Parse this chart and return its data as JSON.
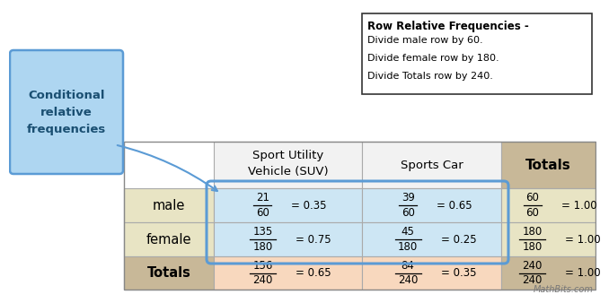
{
  "fig_w": 6.54,
  "fig_h": 3.16,
  "bg_color": "#ffffff",
  "table": {
    "cells": [
      [
        {
          "num": "21",
          "den": "60",
          "val": "= 0.35"
        },
        {
          "num": "39",
          "den": "60",
          "val": "= 0.65"
        },
        {
          "num": "60",
          "den": "60",
          "val": "= 1.00"
        }
      ],
      [
        {
          "num": "135",
          "den": "180",
          "val": "= 0.75"
        },
        {
          "num": "45",
          "den": "180",
          "val": "= 0.25"
        },
        {
          "num": "180",
          "den": "180",
          "val": "= 1.00"
        }
      ],
      [
        {
          "num": "156",
          "den": "240",
          "val": "= 0.65"
        },
        {
          "num": "84",
          "den": "240",
          "val": "= 0.35"
        },
        {
          "num": "240",
          "den": "240",
          "val": "= 1.00"
        }
      ]
    ]
  },
  "annotation": {
    "title": "Row Relative Frequencies -",
    "lines": [
      "Divide male row by 60.",
      "Divide female row by 180.",
      "Divide Totals row by 240."
    ]
  },
  "watermark": "MathBits.com",
  "c_white": "#ffffff",
  "c_light_blue": "#cde6f4",
  "c_tan_light": "#e8e4c4",
  "c_tan_dark": "#c8b898",
  "c_peach": "#f8d8be",
  "c_header_bg": "#f2f2f2",
  "c_blue_border": "#5b9bd5",
  "c_label_bg": "#aed6f1"
}
